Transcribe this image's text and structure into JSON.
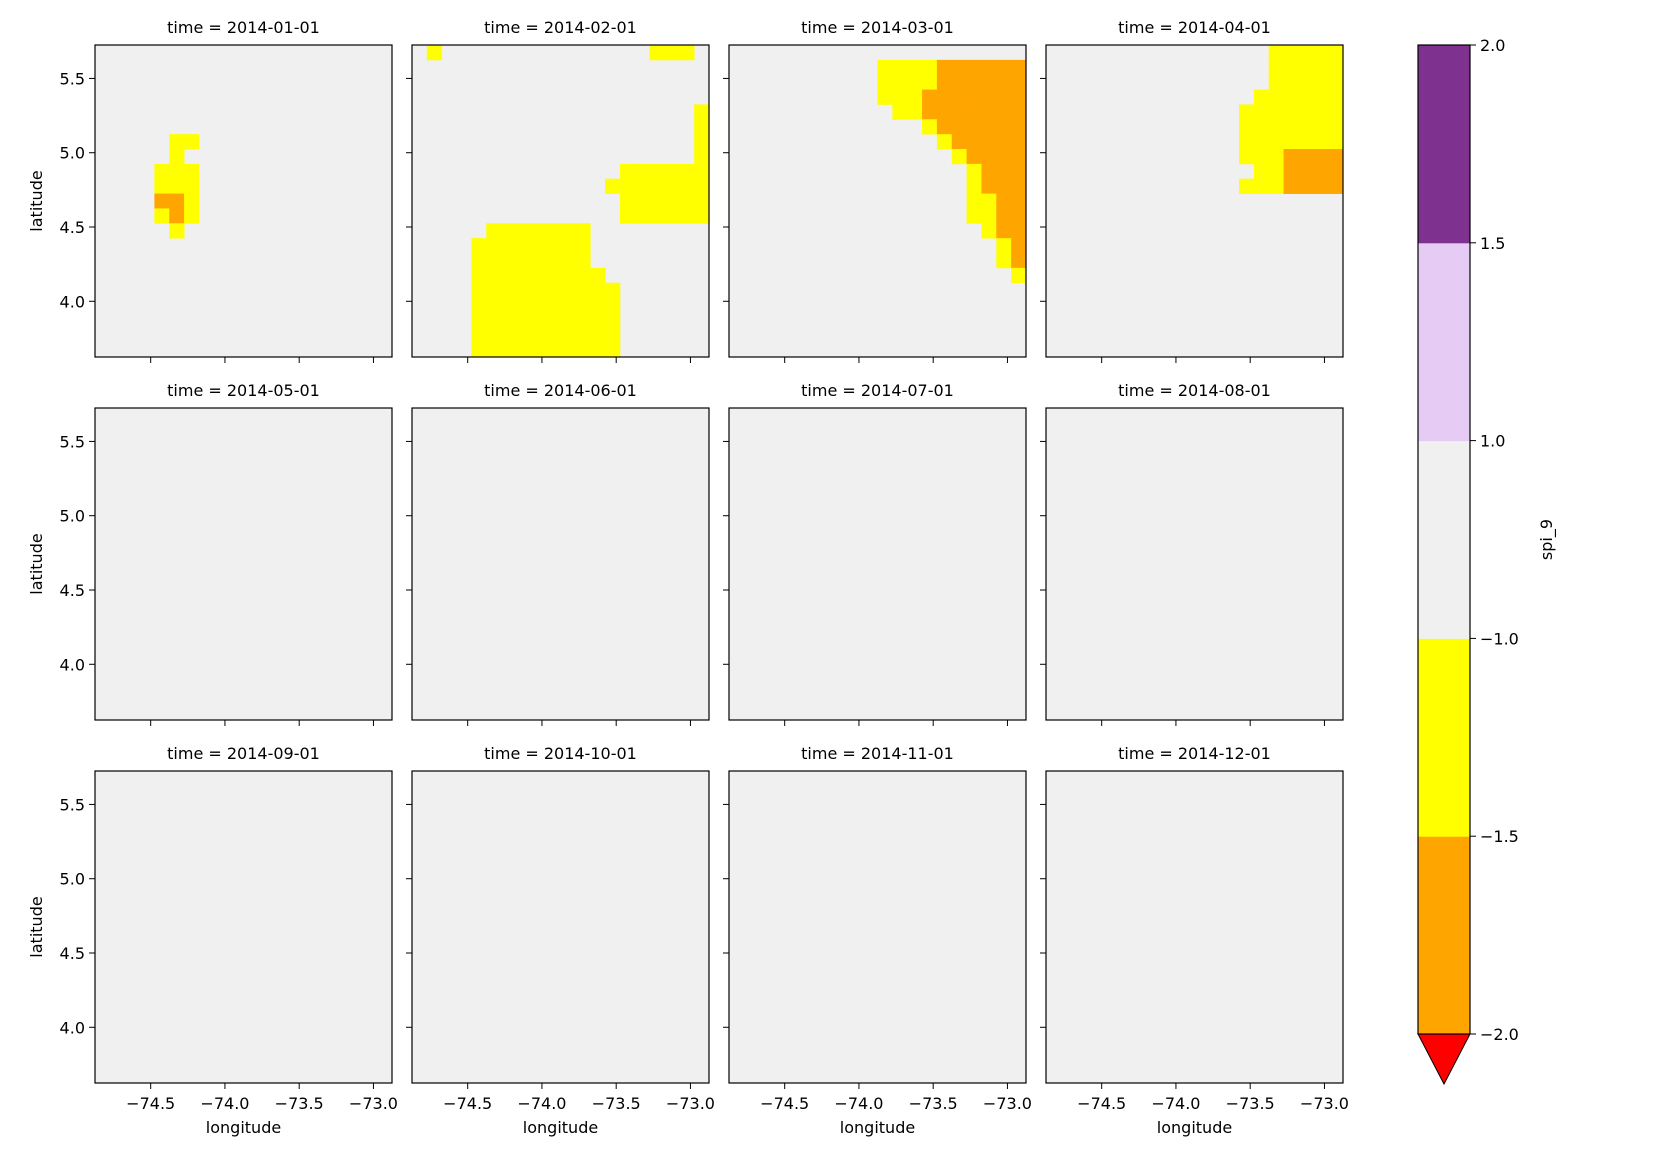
{
  "chart_data": {
    "type": "heatmap",
    "variable": "spi_9",
    "xlabel": "longitude",
    "ylabel": "latitude",
    "x_ticks": [
      -74.5,
      -74.0,
      -73.5,
      -73.0
    ],
    "x_tick_labels": [
      "−74.5",
      "−74.0",
      "−73.5",
      "−73.0"
    ],
    "y_ticks": [
      4.0,
      4.5,
      5.0,
      5.5
    ],
    "y_tick_labels": [
      "4.0",
      "4.5",
      "5.0",
      "5.5"
    ],
    "xlim": [
      -74.875,
      -72.875
    ],
    "ylim": [
      3.625,
      5.725
    ],
    "grid": {
      "x0": -74.875,
      "y0": 3.625,
      "dx": 0.1,
      "dy": 0.1,
      "cols": 20,
      "rows": 21
    },
    "colorbar": {
      "label": "spi_9",
      "bounds": [
        -2.0,
        -1.5,
        -1.0,
        1.0,
        1.5,
        2.0
      ],
      "tick_labels": [
        "−2.0",
        "−1.5",
        "−1.0",
        "1.0",
        "1.5",
        "2.0"
      ],
      "colors": [
        "#ffa500",
        "#ffff00",
        "#f0f0f0",
        "#e6ccf5",
        "#7f3190"
      ],
      "under_color": "#ff0000",
      "extend": "min"
    },
    "class_codes": {
      "R": "spi_9 < -2.0",
      "O": "-2.0 to -1.5",
      "Y": "-1.5 to -1.0",
      ".": "-1.0 to 1.0",
      "L": "1.0 to 1.5",
      "P": "1.5 to 2.0"
    },
    "panels": [
      {
        "title": "time = 2014-01-01",
        "rows": [
          "....................",
          "....................",
          "....................",
          "....................",
          "....................",
          "....................",
          ".....YY.............",
          ".....Y..............",
          "....YYY.............",
          "....YYY.............",
          "....OOY.............",
          "....YOY.............",
          ".....Y..............",
          "....................",
          "....................",
          "....................",
          "....................",
          "....................",
          "....................",
          "....................",
          "...................."
        ]
      },
      {
        "title": "time = 2014-02-01",
        "rows": [
          ".Y..............YYY.",
          "....................",
          "....................",
          "....................",
          "...................Y",
          "...................Y",
          "...................Y",
          "...................Y",
          "..............YYYYYY",
          ".............YYYYYYY",
          "..............YYYYYY",
          "..............YYYYYY",
          ".....YYYYYYY........",
          "....YYYYYYYY........",
          "....YYYYYYYY........",
          "....YYYYYYYYY.......",
          "....YYYYYYYYYY......",
          "....YYYYYYYYYY......",
          "....YYYYYYYYYY......",
          "....YYYYYYYYYY......",
          "....YYYYYYYYYY......"
        ]
      },
      {
        "title": "time = 2014-03-01",
        "rows": [
          "....................",
          "..........YYYYOOOOOO",
          "..........YYYYOOOOOO",
          "..........YYYOOOOOOO",
          "...........YYOOOOOOO",
          ".............YOOOOOO",
          "..............YOOOOO",
          "...............YOOOO",
          "................YOOO",
          "................YOOO",
          "................YYOO",
          "................YYOO",
          ".................YOO",
          "..................YO",
          "..................YO",
          "...................Y",
          "....................",
          "....................",
          "....................",
          "....................",
          "...................."
        ]
      },
      {
        "title": "time = 2014-04-01",
        "rows": [
          "...............YYYYY",
          "...............YYYYY",
          "...............YYYYY",
          "..............YYYYYY",
          ".............YYYYYYY",
          ".............YYYYYYY",
          ".............YYYYYYY",
          ".............YYYOOOO",
          "..............YYOOOO",
          ".............YYYOOOO",
          "....................",
          "....................",
          "....................",
          "....................",
          "....................",
          "....................",
          "....................",
          "....................",
          "....................",
          "....................",
          "...................."
        ]
      },
      {
        "title": "time = 2014-05-01",
        "rows": [
          "....................",
          "....................",
          "....................",
          "....................",
          "....................",
          "....................",
          "....................",
          "....................",
          "....................",
          "....................",
          "....................",
          "....................",
          "....................",
          "....................",
          "....................",
          "....................",
          "....................",
          "....................",
          "....................",
          "....................",
          "...................."
        ]
      },
      {
        "title": "time = 2014-06-01",
        "rows": [
          "....................",
          "....................",
          "....................",
          "....................",
          "....................",
          "....................",
          "....................",
          "....................",
          "....................",
          "....................",
          "....................",
          "....................",
          "....................",
          "....................",
          "....................",
          "....................",
          "....................",
          "....................",
          "....................",
          "....................",
          "...................."
        ]
      },
      {
        "title": "time = 2014-07-01",
        "rows": [
          "....................",
          "....................",
          "....................",
          "....................",
          "....................",
          "....................",
          "....................",
          "....................",
          "....................",
          "....................",
          "....................",
          "....................",
          "....................",
          "....................",
          "....................",
          "....................",
          "....................",
          "....................",
          "....................",
          "....................",
          "...................."
        ]
      },
      {
        "title": "time = 2014-08-01",
        "rows": [
          "....................",
          "....................",
          "....................",
          "....................",
          "....................",
          "....................",
          "....................",
          "....................",
          "....................",
          "....................",
          "....................",
          "....................",
          "....................",
          "....................",
          "....................",
          "....................",
          "....................",
          "....................",
          "....................",
          "....................",
          "...................."
        ]
      },
      {
        "title": "time = 2014-09-01",
        "rows": [
          "....................",
          "....................",
          "....................",
          "....................",
          "....................",
          "....................",
          "....................",
          "....................",
          "....................",
          "....................",
          "....................",
          "....................",
          "....................",
          "....................",
          "....................",
          "....................",
          "....................",
          "....................",
          "....................",
          "....................",
          "...................."
        ]
      },
      {
        "title": "time = 2014-10-01",
        "rows": [
          "....................",
          "....................",
          "....................",
          "....................",
          "....................",
          "....................",
          "....................",
          "....................",
          "....................",
          "....................",
          "....................",
          "....................",
          "....................",
          "....................",
          "....................",
          "....................",
          "....................",
          "....................",
          "....................",
          "....................",
          "...................."
        ]
      },
      {
        "title": "time = 2014-11-01",
        "rows": [
          "....................",
          "....................",
          "....................",
          "....................",
          "....................",
          "....................",
          "....................",
          "....................",
          "....................",
          "....................",
          "....................",
          "....................",
          "....................",
          "....................",
          "....................",
          "....................",
          "....................",
          "....................",
          "....................",
          "....................",
          "...................."
        ]
      },
      {
        "title": "time = 2014-12-01",
        "rows": [
          "....................",
          "....................",
          "....................",
          "....................",
          "....................",
          "....................",
          "....................",
          "....................",
          "....................",
          "....................",
          "....................",
          "....................",
          "....................",
          "....................",
          "....................",
          "....................",
          "....................",
          "....................",
          "....................",
          "....................",
          "...................."
        ]
      }
    ]
  }
}
